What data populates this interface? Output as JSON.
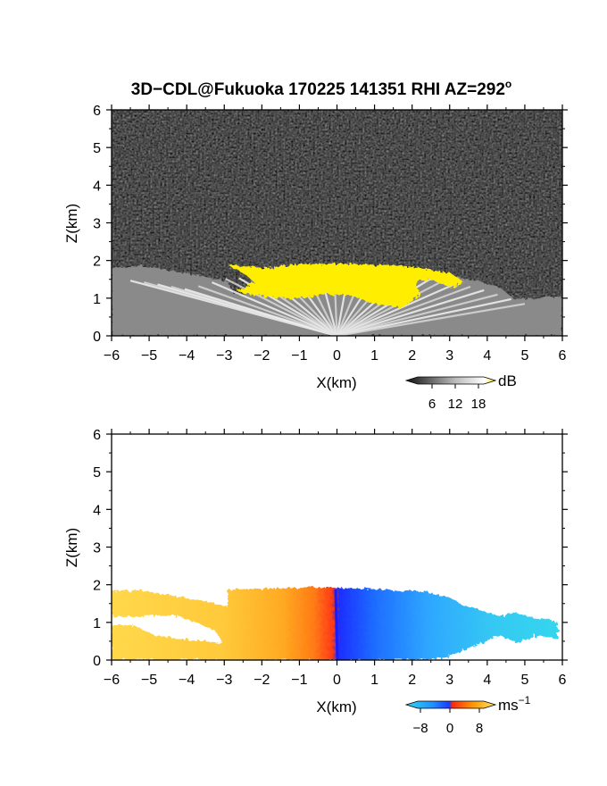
{
  "title": {
    "main": "3D−CDL@Fukuoka 170225 141351 RHI AZ=292",
    "degree": "o"
  },
  "chart_data": [
    {
      "type": "heatmap",
      "name": "snr-panel",
      "xlabel": "X(km)",
      "ylabel": "Z(km)",
      "xlim": [
        -6,
        6
      ],
      "ylim": [
        0,
        6
      ],
      "xticks": [
        "−6",
        "−5",
        "−4",
        "−3",
        "−2",
        "−1",
        "0",
        "1",
        "2",
        "3",
        "4",
        "5",
        "6"
      ],
      "yticks": [
        "0",
        "1",
        "2",
        "3",
        "4",
        "5",
        "6"
      ],
      "colorbar": {
        "unit": "dB",
        "ticks": [
          "6",
          "12",
          "18"
        ],
        "range": [
          0,
          20
        ],
        "colors": [
          "#000000",
          "#ffffff",
          "#ffe600"
        ]
      },
      "echo_top_profile": [
        {
          "x": -6.0,
          "z": 1.8
        },
        {
          "x": -5.0,
          "z": 1.65
        },
        {
          "x": -4.0,
          "z": 1.45
        },
        {
          "x": -3.0,
          "z": 1.78
        },
        {
          "x": -1.0,
          "z": 1.88
        },
        {
          "x": 0.0,
          "z": 1.9
        },
        {
          "x": 1.0,
          "z": 1.88
        },
        {
          "x": 2.0,
          "z": 1.82
        },
        {
          "x": 3.0,
          "z": 1.7
        },
        {
          "x": 4.0,
          "z": 1.4
        },
        {
          "x": 4.5,
          "z": 1.2
        },
        {
          "x": 5.0,
          "z": 1.0
        },
        {
          "x": 6.0,
          "z": 1.0
        }
      ],
      "high_snr_region": {
        "x": [
          -3.0,
          4.3
        ],
        "z": [
          1.0,
          1.9
        ],
        "value_db": 18
      }
    },
    {
      "type": "heatmap",
      "name": "velocity-panel",
      "xlabel": "X(km)",
      "ylabel": "Z(km)",
      "xlim": [
        -6,
        6
      ],
      "ylim": [
        0,
        6
      ],
      "xticks": [
        "−6",
        "−5",
        "−4",
        "−3",
        "−2",
        "−1",
        "0",
        "1",
        "2",
        "3",
        "4",
        "5",
        "6"
      ],
      "yticks": [
        "0",
        "1",
        "2",
        "3",
        "4",
        "5",
        "6"
      ],
      "colorbar": {
        "unit": "ms",
        "unit_exp": "−1",
        "ticks": [
          "−8",
          "0",
          "8"
        ],
        "range": [
          -10,
          10
        ],
        "colors": [
          "#35d6ee",
          "#1f6bff",
          "#ff3a1a",
          "#ffb400",
          "#ffe36a"
        ]
      },
      "velocity_samples": [
        {
          "x": -5.5,
          "v": 7
        },
        {
          "x": -4.0,
          "v": 6
        },
        {
          "x": -2.5,
          "v": 5
        },
        {
          "x": -1.5,
          "v": 3
        },
        {
          "x": -0.8,
          "v": 1
        },
        {
          "x": -0.2,
          "v": 0
        },
        {
          "x": 0.2,
          "v": -3
        },
        {
          "x": 0.8,
          "v": -5
        },
        {
          "x": 2.0,
          "v": -7
        },
        {
          "x": 4.0,
          "v": -8
        },
        {
          "x": 5.8,
          "v": -8
        }
      ]
    }
  ]
}
